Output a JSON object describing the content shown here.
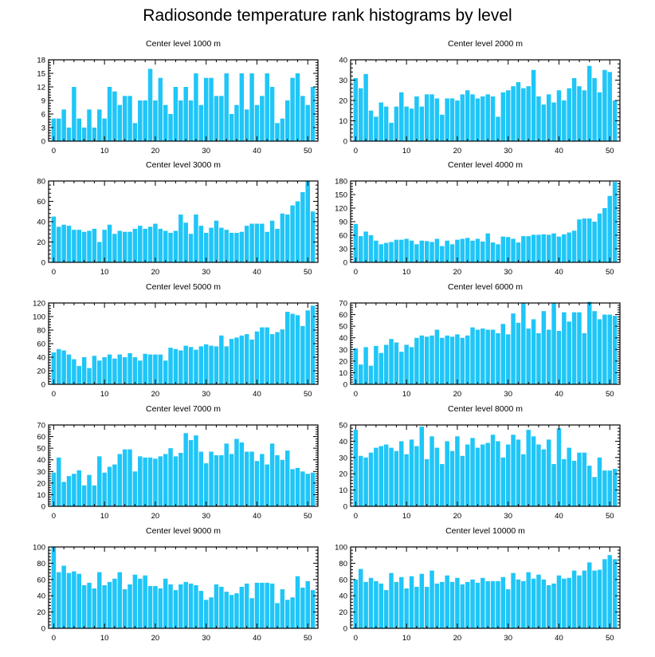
{
  "page": {
    "title": "Radiosonde temperature rank histograms by level"
  },
  "colors": {
    "bar": "#1fc6f7",
    "axis": "#000000",
    "background": "#ffffff"
  },
  "chart_data": [
    {
      "type": "bar",
      "title": "Center level 1000 m",
      "xlim": [
        -1,
        52
      ],
      "ylim": [
        0,
        18
      ],
      "xticks": [
        0,
        10,
        20,
        30,
        40,
        50
      ],
      "yticks": [
        0,
        3,
        6,
        9,
        12,
        15,
        18
      ],
      "values": [
        5,
        5,
        7,
        3,
        12,
        5,
        3,
        7,
        3,
        7,
        5,
        12,
        11,
        8,
        10,
        10,
        4,
        9,
        9,
        16,
        9,
        14,
        8,
        6,
        12,
        9,
        12,
        9,
        15,
        8,
        14,
        14,
        10,
        10,
        15,
        6,
        8,
        15,
        7,
        15,
        8,
        10,
        15,
        12,
        4,
        5,
        9,
        14,
        15,
        10,
        8,
        12
      ]
    },
    {
      "type": "bar",
      "title": "Center level 2000 m",
      "xlim": [
        -1,
        52
      ],
      "ylim": [
        0,
        40
      ],
      "xticks": [
        0,
        10,
        20,
        30,
        40,
        50
      ],
      "yticks": [
        0,
        10,
        20,
        30,
        40
      ],
      "values": [
        31,
        26,
        33,
        15,
        12,
        19,
        17,
        9,
        17,
        24,
        17,
        16,
        22,
        17,
        23,
        23,
        21,
        13,
        21,
        21,
        20,
        23,
        25,
        23,
        21,
        22,
        23,
        22,
        12,
        24,
        25,
        27,
        29,
        26,
        27,
        35,
        22,
        18,
        23,
        19,
        25,
        20,
        26,
        31,
        27,
        25,
        37,
        31,
        24,
        35,
        34,
        20
      ]
    },
    {
      "type": "bar",
      "title": "Center level 3000 m",
      "xlim": [
        -1,
        52
      ],
      "ylim": [
        0,
        80
      ],
      "xticks": [
        0,
        10,
        20,
        30,
        40,
        50
      ],
      "yticks": [
        0,
        20,
        40,
        60,
        80
      ],
      "values": [
        45,
        35,
        37,
        36,
        32,
        32,
        30,
        31,
        33,
        20,
        32,
        37,
        28,
        31,
        30,
        30,
        33,
        36,
        33,
        35,
        38,
        33,
        31,
        29,
        31,
        47,
        39,
        28,
        47,
        36,
        29,
        34,
        41,
        34,
        32,
        29,
        29,
        30,
        36,
        38,
        38,
        38,
        30,
        41,
        33,
        48,
        47,
        56,
        60,
        69,
        80,
        50
      ]
    },
    {
      "type": "bar",
      "title": "Center level 4000 m",
      "xlim": [
        -1,
        52
      ],
      "ylim": [
        0,
        180
      ],
      "xticks": [
        0,
        10,
        20,
        30,
        40,
        50
      ],
      "yticks": [
        0,
        30,
        60,
        90,
        120,
        150,
        180
      ],
      "values": [
        85,
        58,
        68,
        60,
        48,
        40,
        43,
        45,
        50,
        50,
        52,
        48,
        40,
        48,
        47,
        45,
        52,
        36,
        48,
        40,
        50,
        52,
        54,
        48,
        52,
        46,
        64,
        44,
        40,
        57,
        56,
        52,
        44,
        58,
        58,
        61,
        61,
        62,
        61,
        64,
        57,
        62,
        66,
        70,
        95,
        97,
        97,
        90,
        108,
        120,
        147,
        178
      ]
    },
    {
      "type": "bar",
      "title": "Center level 5000 m",
      "xlim": [
        -1,
        52
      ],
      "ylim": [
        0,
        120
      ],
      "xticks": [
        0,
        10,
        20,
        30,
        40,
        50
      ],
      "yticks": [
        0,
        20,
        40,
        60,
        80,
        100,
        120
      ],
      "values": [
        47,
        52,
        50,
        44,
        37,
        27,
        40,
        24,
        42,
        35,
        40,
        44,
        38,
        44,
        40,
        46,
        40,
        35,
        45,
        44,
        44,
        44,
        35,
        54,
        52,
        50,
        57,
        55,
        51,
        56,
        59,
        57,
        56,
        72,
        56,
        67,
        69,
        72,
        74,
        66,
        78,
        84,
        84,
        74,
        77,
        81,
        107,
        104,
        102,
        86,
        109,
        116
      ]
    },
    {
      "type": "bar",
      "title": "Center level 6000 m",
      "xlim": [
        -1,
        52
      ],
      "ylim": [
        0,
        70
      ],
      "xticks": [
        0,
        10,
        20,
        30,
        40,
        50
      ],
      "yticks": [
        0,
        10,
        20,
        30,
        40,
        50,
        60,
        70
      ],
      "values": [
        31,
        17,
        32,
        16,
        33,
        27,
        34,
        39,
        36,
        28,
        34,
        32,
        40,
        42,
        41,
        42,
        47,
        40,
        42,
        41,
        43,
        40,
        42,
        49,
        47,
        48,
        47,
        47,
        44,
        52,
        43,
        61,
        53,
        70,
        48,
        56,
        44,
        63,
        47,
        70,
        46,
        62,
        54,
        62,
        62,
        44,
        71,
        63,
        56,
        60,
        60,
        59
      ]
    },
    {
      "type": "bar",
      "title": "Center level 7000 m",
      "xlim": [
        -1,
        52
      ],
      "ylim": [
        0,
        70
      ],
      "xticks": [
        0,
        10,
        20,
        30,
        40,
        50
      ],
      "yticks": [
        0,
        10,
        20,
        30,
        40,
        50,
        60,
        70
      ],
      "values": [
        29,
        42,
        21,
        26,
        28,
        31,
        18,
        27,
        18,
        43,
        29,
        34,
        36,
        45,
        49,
        49,
        30,
        43,
        42,
        42,
        41,
        43,
        45,
        50,
        43,
        46,
        63,
        57,
        61,
        47,
        37,
        47,
        44,
        44,
        54,
        45,
        58,
        55,
        47,
        47,
        39,
        45,
        36,
        54,
        44,
        40,
        48,
        32,
        33,
        30,
        28,
        29
      ]
    },
    {
      "type": "bar",
      "title": "Center level 8000 m",
      "xlim": [
        -1,
        52
      ],
      "ylim": [
        0,
        50
      ],
      "xticks": [
        0,
        10,
        20,
        30,
        40,
        50
      ],
      "yticks": [
        0,
        10,
        20,
        30,
        40,
        50
      ],
      "values": [
        47,
        31,
        30,
        33,
        36,
        37,
        38,
        36,
        34,
        40,
        32,
        41,
        37,
        49,
        29,
        43,
        36,
        26,
        40,
        34,
        43,
        31,
        38,
        42,
        36,
        38,
        39,
        44,
        40,
        30,
        38,
        44,
        41,
        32,
        47,
        43,
        38,
        35,
        41,
        26,
        48,
        29,
        36,
        28,
        33,
        33,
        25,
        18,
        30,
        22,
        22,
        23
      ]
    },
    {
      "type": "bar",
      "title": "Center level 9000 m",
      "xlim": [
        -1,
        52
      ],
      "ylim": [
        0,
        100
      ],
      "xticks": [
        0,
        10,
        20,
        30,
        40,
        50
      ],
      "yticks": [
        0,
        20,
        40,
        60,
        80,
        100
      ],
      "values": [
        100,
        69,
        77,
        68,
        70,
        67,
        53,
        56,
        49,
        69,
        53,
        57,
        61,
        69,
        48,
        54,
        66,
        61,
        65,
        52,
        52,
        49,
        61,
        54,
        47,
        54,
        57,
        55,
        53,
        46,
        35,
        38,
        54,
        51,
        45,
        41,
        43,
        51,
        55,
        37,
        56,
        56,
        56,
        55,
        31,
        48,
        35,
        38,
        64,
        50,
        58,
        47
      ]
    },
    {
      "type": "bar",
      "title": "Center level 10000 m",
      "xlim": [
        -1,
        52
      ],
      "ylim": [
        0,
        100
      ],
      "xticks": [
        0,
        10,
        20,
        30,
        40,
        50
      ],
      "yticks": [
        0,
        20,
        40,
        60,
        80,
        100
      ],
      "values": [
        60,
        73,
        57,
        62,
        58,
        55,
        47,
        68,
        57,
        63,
        49,
        64,
        51,
        67,
        51,
        71,
        55,
        57,
        65,
        57,
        62,
        54,
        57,
        60,
        56,
        62,
        58,
        58,
        58,
        63,
        48,
        68,
        60,
        58,
        69,
        61,
        66,
        60,
        53,
        55,
        65,
        61,
        62,
        71,
        65,
        71,
        81,
        71,
        72,
        85,
        90,
        85
      ]
    }
  ]
}
